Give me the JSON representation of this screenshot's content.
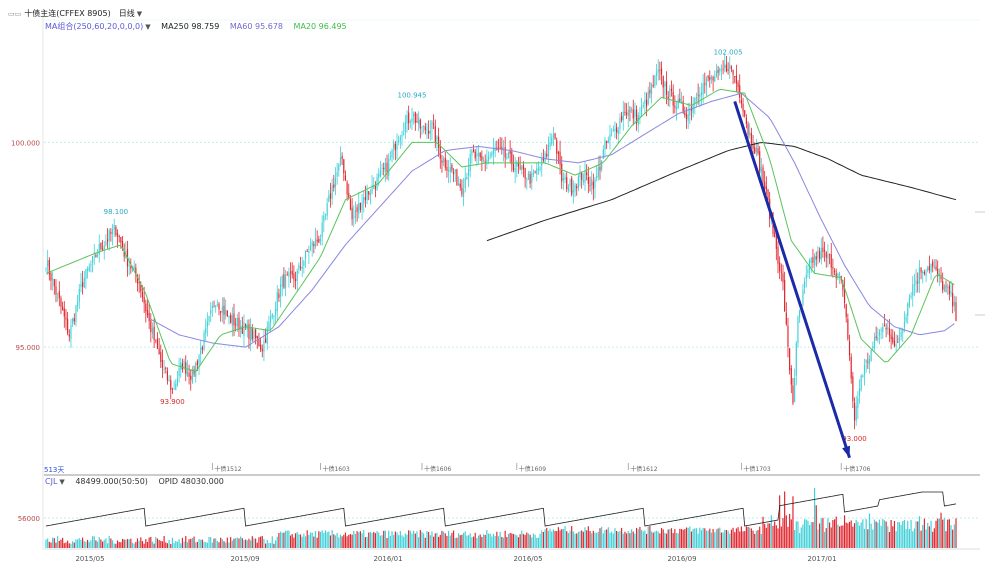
{
  "header": {
    "title": "十债主连(CFFEX 8905)",
    "period": "日线",
    "ma_params": "MA组合(250,60,20,0,0,0)",
    "ma250": "MA250 98.759",
    "ma60": "MA60 95.678",
    "ma20": "MA20 96.495",
    "days_label": "513天"
  },
  "volume_panel": {
    "indicator": "CJL",
    "volume": "48499.000(50:50)",
    "open_interest": "OPID 48030.000",
    "axis_label": "56000"
  },
  "colors": {
    "up": "#3fd0d8",
    "down": "#e0242c",
    "ma20": "#59c45a",
    "ma60": "#8a86e0",
    "ma250": "#222222",
    "arrow": "#1a2aa8",
    "axis_text": "#b94b4b",
    "grid": "#bfeef2"
  },
  "chart_data": {
    "type": "candlestick",
    "y_ticks": [
      {
        "value": 100.0,
        "label": "100.000"
      },
      {
        "value": 95.0,
        "label": "95.000"
      }
    ],
    "ylim": [
      92.0,
      102.5
    ],
    "x_time_labels": [
      "2015/05",
      "2015/09",
      "2016/01",
      "2016/05",
      "2016/09",
      "2017/01"
    ],
    "x_contract_labels": [
      "十债1512",
      "十债1603",
      "十债1606",
      "十债1609",
      "十债1612",
      "十债1703",
      "十债1706"
    ],
    "annotations": [
      {
        "label": "98.100",
        "value": 98.1,
        "kind": "high"
      },
      {
        "label": "93.900",
        "value": 93.9,
        "kind": "low"
      },
      {
        "label": "100.945",
        "value": 100.945,
        "kind": "high"
      },
      {
        "label": "102.005",
        "value": 102.005,
        "kind": "high"
      },
      {
        "label": "93.000",
        "value": 93.0,
        "kind": "low"
      }
    ],
    "anchors": [
      [
        0,
        97.1
      ],
      [
        8,
        96.1
      ],
      [
        14,
        95.3
      ],
      [
        22,
        96.6
      ],
      [
        32,
        97.4
      ],
      [
        42,
        97.9
      ],
      [
        48,
        97.2
      ],
      [
        56,
        96.6
      ],
      [
        62,
        95.6
      ],
      [
        70,
        94.5
      ],
      [
        76,
        93.95
      ],
      [
        82,
        94.6
      ],
      [
        88,
        94.3
      ],
      [
        95,
        95.2
      ],
      [
        102,
        96.2
      ],
      [
        110,
        95.7
      ],
      [
        118,
        95.5
      ],
      [
        124,
        95.3
      ],
      [
        130,
        95.0
      ],
      [
        136,
        95.8
      ],
      [
        142,
        96.6
      ],
      [
        150,
        96.7
      ],
      [
        158,
        97.4
      ],
      [
        165,
        97.7
      ],
      [
        172,
        98.9
      ],
      [
        178,
        99.6
      ],
      [
        184,
        98.1
      ],
      [
        190,
        98.6
      ],
      [
        198,
        99.0
      ],
      [
        205,
        99.4
      ],
      [
        212,
        100.2
      ],
      [
        220,
        100.7
      ],
      [
        226,
        100.3
      ],
      [
        232,
        100.4
      ],
      [
        238,
        99.6
      ],
      [
        244,
        99.3
      ],
      [
        250,
        98.9
      ],
      [
        256,
        99.7
      ],
      [
        262,
        99.5
      ],
      [
        270,
        99.8
      ],
      [
        278,
        99.6
      ],
      [
        285,
        99.3
      ],
      [
        292,
        99.1
      ],
      [
        300,
        99.6
      ],
      [
        305,
        100.3
      ],
      [
        310,
        99.1
      ],
      [
        316,
        98.9
      ],
      [
        322,
        99.2
      ],
      [
        330,
        99.0
      ],
      [
        336,
        99.9
      ],
      [
        342,
        100.3
      ],
      [
        348,
        100.8
      ],
      [
        356,
        100.6
      ],
      [
        362,
        101.1
      ],
      [
        368,
        101.7
      ],
      [
        374,
        101.2
      ],
      [
        380,
        100.9
      ],
      [
        386,
        100.7
      ],
      [
        392,
        101.3
      ],
      [
        398,
        101.5
      ],
      [
        404,
        101.6
      ],
      [
        410,
        101.9
      ],
      [
        414,
        101.6
      ],
      [
        418,
        101.1
      ],
      [
        422,
        100.3
      ],
      [
        426,
        99.9
      ],
      [
        430,
        99.3
      ],
      [
        436,
        98.1
      ],
      [
        440,
        97.2
      ],
      [
        443,
        96.5
      ],
      [
        446,
        94.9
      ],
      [
        449,
        93.7
      ],
      [
        452,
        95.6
      ],
      [
        456,
        96.5
      ],
      [
        460,
        97.1
      ],
      [
        466,
        97.3
      ],
      [
        472,
        97.1
      ],
      [
        478,
        96.6
      ],
      [
        482,
        95.3
      ],
      [
        486,
        93.2
      ],
      [
        490,
        94.3
      ],
      [
        494,
        94.7
      ],
      [
        500,
        95.3
      ],
      [
        506,
        95.6
      ],
      [
        510,
        94.9
      ],
      [
        514,
        95.4
      ],
      [
        520,
        96.4
      ],
      [
        526,
        96.9
      ],
      [
        532,
        97.0
      ],
      [
        538,
        96.6
      ],
      [
        544,
        96.2
      ],
      [
        547,
        95.8
      ]
    ],
    "n_candles": 548,
    "ma_anchors": {
      "ma20": [
        [
          0,
          96.8
        ],
        [
          30,
          97.3
        ],
        [
          45,
          97.5
        ],
        [
          60,
          96.3
        ],
        [
          75,
          94.6
        ],
        [
          90,
          94.4
        ],
        [
          105,
          95.3
        ],
        [
          120,
          95.5
        ],
        [
          135,
          95.4
        ],
        [
          150,
          96.3
        ],
        [
          165,
          97.2
        ],
        [
          180,
          98.6
        ],
        [
          200,
          99.0
        ],
        [
          220,
          100.0
        ],
        [
          235,
          100.0
        ],
        [
          250,
          99.4
        ],
        [
          265,
          99.5
        ],
        [
          285,
          99.5
        ],
        [
          300,
          99.5
        ],
        [
          318,
          99.2
        ],
        [
          335,
          99.5
        ],
        [
          352,
          100.4
        ],
        [
          370,
          101.1
        ],
        [
          388,
          100.9
        ],
        [
          405,
          101.3
        ],
        [
          420,
          101.2
        ],
        [
          435,
          99.6
        ],
        [
          448,
          97.6
        ],
        [
          462,
          96.8
        ],
        [
          478,
          96.7
        ],
        [
          490,
          95.2
        ],
        [
          505,
          94.6
        ],
        [
          520,
          95.3
        ],
        [
          535,
          96.8
        ],
        [
          547,
          96.5
        ]
      ],
      "ma60": [
        [
          62,
          95.7
        ],
        [
          80,
          95.3
        ],
        [
          100,
          95.1
        ],
        [
          120,
          95.0
        ],
        [
          140,
          95.5
        ],
        [
          160,
          96.4
        ],
        [
          180,
          97.5
        ],
        [
          200,
          98.4
        ],
        [
          220,
          99.3
        ],
        [
          240,
          99.8
        ],
        [
          260,
          99.9
        ],
        [
          280,
          99.8
        ],
        [
          300,
          99.6
        ],
        [
          320,
          99.5
        ],
        [
          340,
          99.7
        ],
        [
          360,
          100.2
        ],
        [
          380,
          100.7
        ],
        [
          400,
          101.0
        ],
        [
          418,
          101.2
        ],
        [
          435,
          100.6
        ],
        [
          450,
          99.5
        ],
        [
          465,
          98.2
        ],
        [
          480,
          97.0
        ],
        [
          495,
          96.0
        ],
        [
          510,
          95.5
        ],
        [
          525,
          95.3
        ],
        [
          540,
          95.4
        ],
        [
          547,
          95.6
        ]
      ],
      "ma250": [
        [
          265,
          97.6
        ],
        [
          300,
          98.1
        ],
        [
          340,
          98.6
        ],
        [
          380,
          99.3
        ],
        [
          410,
          99.8
        ],
        [
          430,
          100.0
        ],
        [
          450,
          99.9
        ],
        [
          470,
          99.6
        ],
        [
          490,
          99.2
        ],
        [
          520,
          98.9
        ],
        [
          547,
          98.6
        ]
      ]
    }
  }
}
